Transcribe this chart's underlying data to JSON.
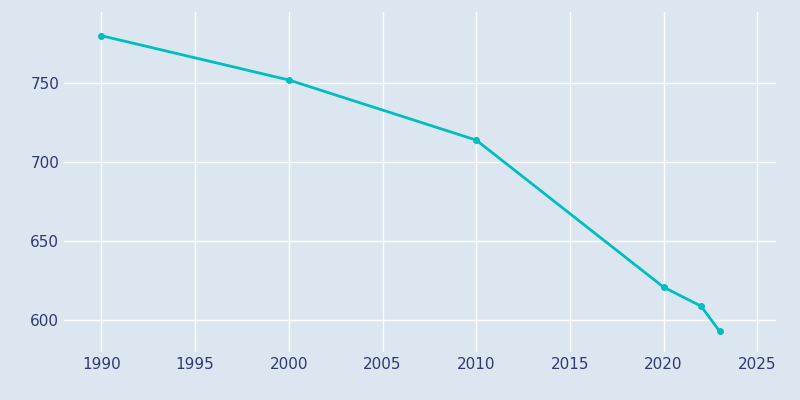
{
  "years": [
    1990,
    2000,
    2010,
    2020,
    2022,
    2023
  ],
  "population": [
    780,
    752,
    714,
    621,
    609,
    593
  ],
  "line_color": "#00BEBE",
  "marker": "o",
  "marker_size": 4,
  "bg_color": "#dce6f0",
  "plot_bg_color": "#dce6f0",
  "grid_color": "#ffffff",
  "xlim": [
    1988,
    2026
  ],
  "ylim": [
    580,
    795
  ],
  "xticks": [
    1990,
    1995,
    2000,
    2005,
    2010,
    2015,
    2020,
    2025
  ],
  "yticks": [
    600,
    650,
    700,
    750
  ],
  "tick_color": "#2e3b6e",
  "tick_fontsize": 11,
  "linewidth": 2.0
}
